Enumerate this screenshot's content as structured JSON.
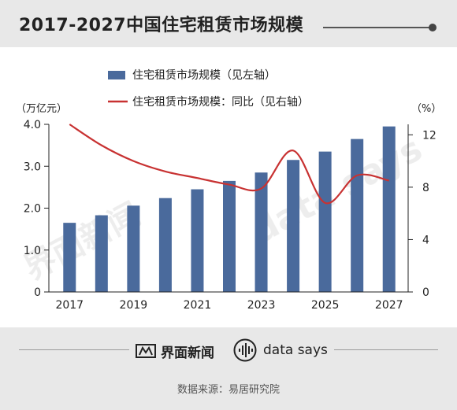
{
  "header": {
    "title": "2017-2027中国住宅租赁市场规模"
  },
  "chart_data": {
    "type": "bar",
    "title": "2017-2027中国住宅租赁市场规模",
    "categories": [
      "2017",
      "2018",
      "2019",
      "2020",
      "2021",
      "2022",
      "2023",
      "2024",
      "2025",
      "2026",
      "2027"
    ],
    "x_tick_labels": [
      "2017",
      "2019",
      "2021",
      "2023",
      "2025",
      "2027"
    ],
    "series": [
      {
        "name": "住宅租赁市场规模（见左轴）",
        "type": "bar",
        "axis": "left",
        "color": "#4a6a9c",
        "values": [
          1.65,
          1.83,
          2.06,
          2.24,
          2.45,
          2.65,
          2.85,
          3.15,
          3.35,
          3.65,
          3.95
        ]
      },
      {
        "name": "住宅租赁市场规模：同比（见右轴）",
        "type": "line",
        "axis": "right",
        "color": "#c83232",
        "values": [
          12.8,
          11.2,
          10.0,
          9.2,
          8.7,
          8.2,
          7.9,
          10.8,
          6.8,
          8.9,
          8.5
        ]
      }
    ],
    "y_left": {
      "unit": "（万亿元）",
      "range": [
        0,
        4.0
      ],
      "ticks": [
        "0",
        "1.0",
        "2.0",
        "3.0",
        "4.0"
      ]
    },
    "y_right": {
      "unit": "（%）",
      "range": [
        0,
        12.8
      ],
      "ticks": [
        "0",
        "4",
        "8",
        "12"
      ]
    },
    "legend_position": "top-center",
    "grid": false
  },
  "footer": {
    "brand_jiemian": "界面新闻",
    "brand_datasays": "data says",
    "source": "数据来源：易居研究院"
  },
  "watermark": {
    "text_left": "界面新闻",
    "text_right": "data says"
  }
}
